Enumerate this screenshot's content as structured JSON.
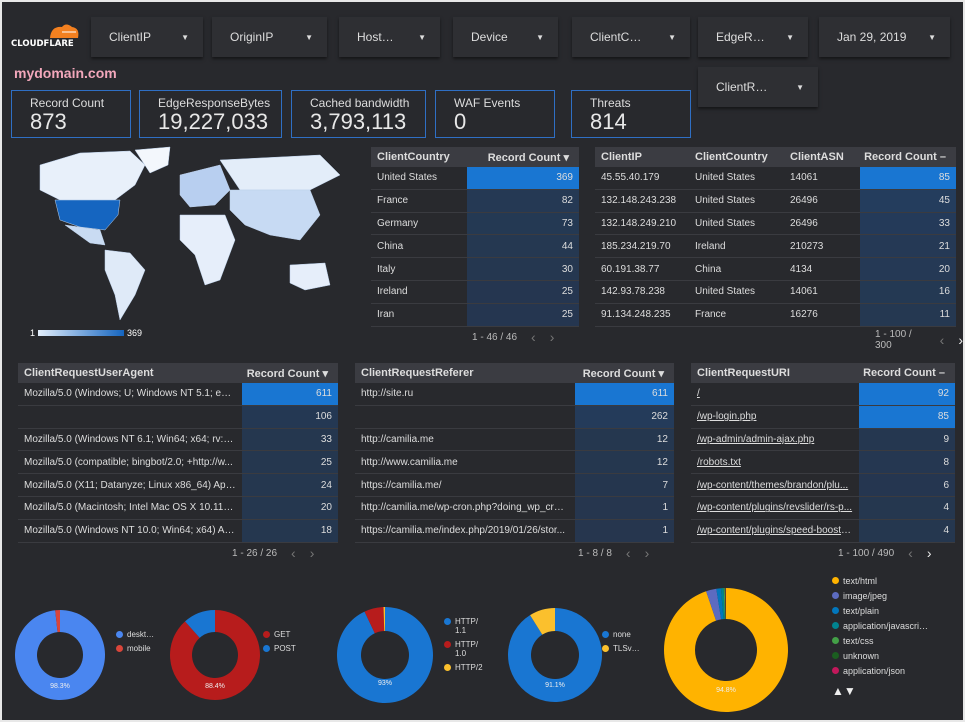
{
  "logo": {
    "text": "CLOUDFLARE"
  },
  "filters": [
    {
      "label": "ClientIP"
    },
    {
      "label": "OriginIP"
    },
    {
      "label": "Host…"
    },
    {
      "label": "Device"
    },
    {
      "label": "ClientC…"
    },
    {
      "label": "EdgeR…"
    },
    {
      "label": "Jan 29, 2019"
    },
    {
      "label": "ClientR…"
    }
  ],
  "title": "mydomain.com",
  "scorecards": [
    {
      "label": "Record Count",
      "value": "873"
    },
    {
      "label": "EdgeResponseBytes",
      "value": "19,227,033"
    },
    {
      "label": "Cached bandwidth",
      "value": "3,793,113"
    },
    {
      "label": "WAF Events",
      "value": "0"
    },
    {
      "label": "Threats",
      "value": "814"
    }
  ],
  "map": {
    "legend_min": "1",
    "legend_max": "369",
    "highlight_color": "#1565c0"
  },
  "tables": [
    {
      "name": "country",
      "headers": [
        "ClientCountry",
        "Record Count ▾"
      ],
      "rows": [
        [
          "United States",
          "369"
        ],
        [
          "France",
          "82"
        ],
        [
          "Germany",
          "73"
        ],
        [
          "China",
          "44"
        ],
        [
          "Italy",
          "30"
        ],
        [
          "Ireland",
          "25"
        ],
        [
          "Iran",
          "25"
        ]
      ],
      "pagination": "1 - 46 / 46"
    },
    {
      "name": "ip",
      "headers": [
        "ClientIP",
        "ClientCountry",
        "ClientASN",
        "Record Count –"
      ],
      "rows": [
        [
          "45.55.40.179",
          "United States",
          "14061",
          "85"
        ],
        [
          "132.148.243.238",
          "United States",
          "26496",
          "45"
        ],
        [
          "132.148.249.210",
          "United States",
          "26496",
          "33"
        ],
        [
          "185.234.219.70",
          "Ireland",
          "210273",
          "21"
        ],
        [
          "60.191.38.77",
          "China",
          "4134",
          "20"
        ],
        [
          "142.93.78.238",
          "United States",
          "14061",
          "16"
        ],
        [
          "91.134.248.235",
          "France",
          "16276",
          "11"
        ]
      ],
      "pagination": "1 - 100 / 300"
    },
    {
      "name": "useragent",
      "headers": [
        "ClientRequestUserAgent",
        "Record Count ▾"
      ],
      "rows": [
        [
          "Mozilla/5.0 (Windows; U; Windows NT 5.1; en-U...",
          "611"
        ],
        [
          "",
          "106"
        ],
        [
          "Mozilla/5.0 (Windows NT 6.1; Win64; x64; rv:64....",
          "33"
        ],
        [
          "Mozilla/5.0 (compatible; bingbot/2.0; +http://w...",
          "25"
        ],
        [
          "Mozilla/5.0 (X11; Datanyze; Linux x86_64) Appl...",
          "24"
        ],
        [
          "Mozilla/5.0 (Macintosh; Intel Mac OS X 10.11; r...",
          "20"
        ],
        [
          "Mozilla/5.0 (Windows NT 10.0; Win64; x64) App...",
          "18"
        ]
      ],
      "pagination": "1 - 26 / 26"
    },
    {
      "name": "referer",
      "headers": [
        "ClientRequestReferer",
        "Record Count ▾"
      ],
      "rows": [
        [
          "http://site.ru",
          "611"
        ],
        [
          "",
          "262"
        ],
        [
          "http://camilia.me",
          "12"
        ],
        [
          "http://www.camilia.me",
          "12"
        ],
        [
          "https://camilia.me/",
          "7"
        ],
        [
          "http://camilia.me/wp-cron.php?doing_wp_cron...",
          "1"
        ],
        [
          "https://camilia.me/index.php/2019/01/26/stor...",
          "1"
        ]
      ],
      "pagination": "1 - 8 / 8"
    },
    {
      "name": "uri",
      "headers": [
        "ClientRequestURI",
        "Record Count –"
      ],
      "rows": [
        [
          "/",
          "92"
        ],
        [
          "/wp-login.php",
          "85"
        ],
        [
          "/wp-admin/admin-ajax.php",
          "9"
        ],
        [
          "/robots.txt",
          "8"
        ],
        [
          "/wp-content/themes/brandon/plu...",
          "6"
        ],
        [
          "/wp-content/plugins/revslider/rs-p...",
          "4"
        ],
        [
          "/wp-content/plugins/speed-booste...",
          "4"
        ]
      ],
      "pagination": "1 - 100 / 490"
    }
  ],
  "chart_data": [
    {
      "type": "pie",
      "donut": true,
      "label": "98.3%",
      "slices": [
        {
          "name": "deskt…",
          "value": 98.3,
          "color": "#4a86f0"
        },
        {
          "name": "mobile",
          "value": 1.7,
          "color": "#d9453a"
        }
      ]
    },
    {
      "type": "pie",
      "donut": true,
      "label": "88.4%",
      "slices": [
        {
          "name": "GET",
          "value": 88.4,
          "color": "#b71c1c"
        },
        {
          "name": "POST",
          "value": 11.6,
          "color": "#1976d2"
        }
      ]
    },
    {
      "type": "pie",
      "donut": true,
      "label": "93%",
      "slices": [
        {
          "name": "HTTP/ 1.1",
          "value": 93,
          "color": "#1976d2"
        },
        {
          "name": "HTTP/ 1.0",
          "value": 6.5,
          "color": "#b71c1c"
        },
        {
          "name": "HTTP/2",
          "value": 0.5,
          "color": "#fbc02d"
        }
      ]
    },
    {
      "type": "pie",
      "donut": true,
      "label": "91.1%",
      "slices": [
        {
          "name": "none",
          "value": 91.1,
          "color": "#1976d2"
        },
        {
          "name": "TLSv…",
          "value": 8.9,
          "color": "#fbc02d"
        }
      ]
    },
    {
      "type": "pie",
      "donut": true,
      "label": "94.8%",
      "slices": [
        {
          "name": "text/html",
          "value": 94.8,
          "color": "#ffb300"
        },
        {
          "name": "image/jpeg",
          "value": 2.7,
          "color": "#5c6bc0"
        },
        {
          "name": "text/plain",
          "value": 1.2,
          "color": "#0277bd"
        },
        {
          "name": "application/javascri…",
          "value": 0.7,
          "color": "#00838f"
        },
        {
          "name": "text/css",
          "value": 0.3,
          "color": "#43a047"
        },
        {
          "name": "unknown",
          "value": 0.2,
          "color": "#1b5e20"
        },
        {
          "name": "application/json",
          "value": 0.1,
          "color": "#c2185b"
        }
      ]
    }
  ],
  "legend_pager": "▲▼"
}
